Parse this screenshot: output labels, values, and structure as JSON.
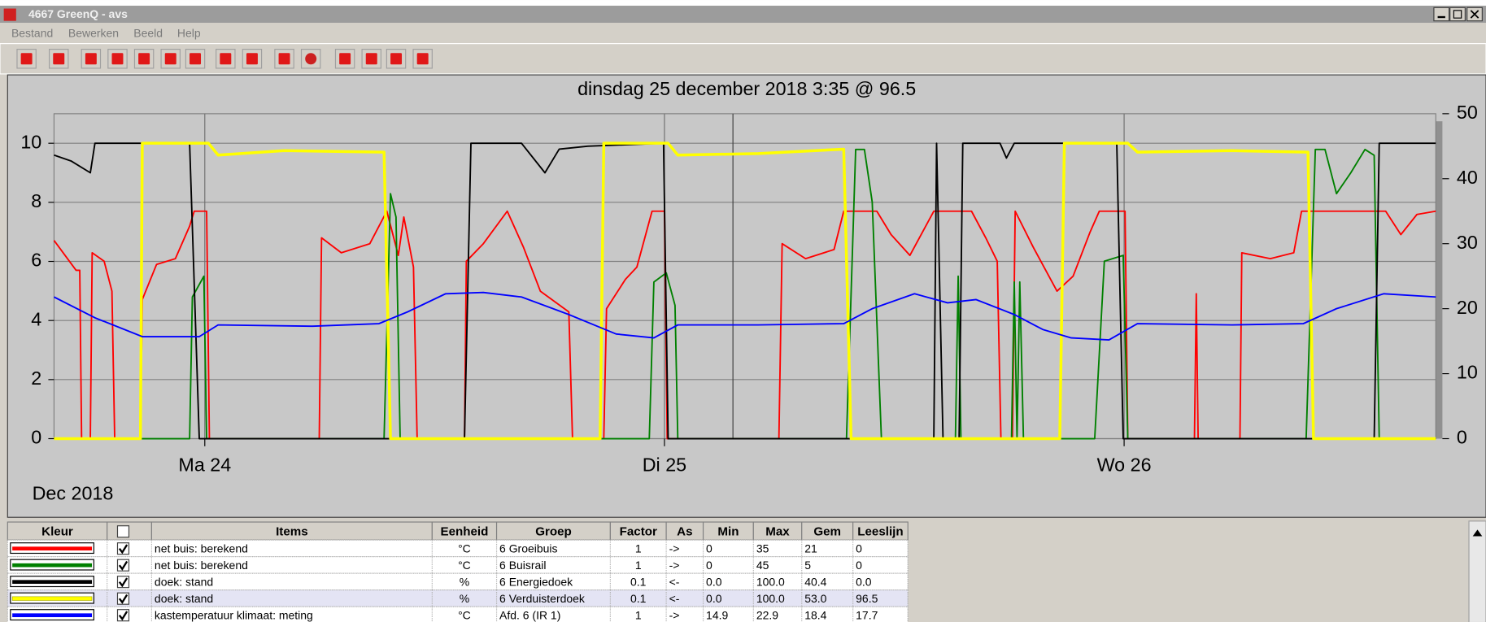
{
  "window": {
    "title": "4667 GreenQ - avs",
    "menu": [
      "Bestand",
      "Bewerken",
      "Beeld",
      "Help"
    ]
  },
  "chart_data": {
    "type": "line",
    "title": "dinsdag 25 december 2018 3:35 @ 96.5",
    "xlim": [
      23.672,
      26.678
    ],
    "xticks": [
      {
        "value": 24,
        "label": "Ma 24"
      },
      {
        "value": 25,
        "label": "Di 25"
      },
      {
        "value": 26,
        "label": "Wo 26"
      }
    ],
    "x_label": "Dec 2018",
    "ylim": [
      0,
      11
    ],
    "yticks": [
      0,
      2,
      4,
      6,
      8,
      10
    ],
    "y2lim": [
      0,
      50
    ],
    "y2ticks": [
      0,
      10,
      20,
      30,
      40,
      50
    ],
    "grid": true,
    "cursor_x": 25.149,
    "series": [
      {
        "name": "net buis: berekend",
        "color": "#ff0000",
        "axis": "y2",
        "x": [
          23.672,
          23.72,
          23.728,
          23.732,
          23.751,
          23.755,
          23.781,
          23.798,
          23.804,
          23.86,
          23.864,
          23.895,
          23.936,
          23.967,
          23.977,
          24.004,
          24.01,
          24.249,
          24.254,
          24.297,
          24.359,
          24.396,
          24.421,
          24.433,
          24.454,
          24.462,
          24.565,
          24.569,
          24.606,
          24.658,
          24.693,
          24.73,
          24.792,
          24.8,
          24.868,
          24.874,
          24.915,
          24.94,
          24.973,
          25.0,
          25.006,
          25.249,
          25.256,
          25.307,
          25.369,
          25.39,
          25.462,
          25.493,
          25.534,
          25.586,
          25.668,
          25.699,
          25.724,
          25.732,
          25.757,
          25.763,
          25.802,
          25.854,
          25.889,
          25.926,
          25.946,
          26.002,
          26.008,
          26.153,
          26.157,
          26.161,
          26.252,
          26.256,
          26.318,
          26.369,
          26.386,
          26.569,
          26.602,
          26.637,
          26.678
        ],
        "values": [
          30.5,
          25.9,
          25.9,
          0,
          0,
          28.6,
          27.3,
          22.7,
          0,
          0,
          21.4,
          26.8,
          27.7,
          32.7,
          35,
          35,
          0,
          0,
          30.9,
          28.6,
          30,
          35,
          28.2,
          34.1,
          26.4,
          0,
          0,
          27.3,
          30,
          35,
          29.5,
          22.7,
          19.5,
          0,
          0,
          20,
          24.5,
          26.4,
          35,
          35,
          0,
          0,
          30,
          27.7,
          29.1,
          35,
          35,
          31.4,
          28.2,
          35,
          35,
          30.9,
          27.3,
          0,
          0,
          35,
          29.5,
          22.7,
          25,
          31.8,
          35,
          35,
          0,
          0,
          22.3,
          0,
          0,
          28.6,
          27.7,
          28.6,
          35,
          35,
          31.4,
          34.5,
          35
        ]
      },
      {
        "name": "net buis: berekend",
        "color": "#008000",
        "axis": "y2",
        "x": [
          23.672,
          23.967,
          23.973,
          23.998,
          24.004,
          24.39,
          24.404,
          24.416,
          24.425,
          24.967,
          24.977,
          25.004,
          25.023,
          25.029,
          25.396,
          25.416,
          25.435,
          25.452,
          25.472,
          25.633,
          25.639,
          25.645,
          25.755,
          25.761,
          25.767,
          25.773,
          25.781,
          25.936,
          25.957,
          25.998,
          26.008,
          26.396,
          26.416,
          26.437,
          26.462,
          26.493,
          26.524,
          26.544,
          26.555,
          26.678
        ],
        "values": [
          0,
          0,
          21.8,
          25,
          0,
          0,
          37.7,
          34.1,
          0,
          0,
          24.1,
          25.5,
          20.5,
          0,
          0,
          44.5,
          44.5,
          36.4,
          0,
          0,
          25,
          0,
          0,
          24.1,
          0,
          24.1,
          0,
          0,
          27.3,
          28.2,
          0,
          0,
          44.5,
          44.5,
          37.7,
          40.9,
          44.5,
          43.6,
          0,
          0
        ]
      },
      {
        "name": "doek: stand",
        "color": "#000000",
        "axis": "y",
        "x": [
          23.672,
          23.709,
          23.751,
          23.761,
          23.967,
          23.988,
          24.565,
          24.579,
          24.689,
          24.74,
          24.771,
          24.833,
          24.998,
          25.008,
          25.586,
          25.592,
          25.606,
          25.641,
          25.649,
          25.73,
          25.744,
          25.761,
          25.984,
          25.998,
          26.544,
          26.555,
          26.678
        ],
        "values": [
          9.6,
          9.4,
          9.0,
          10,
          10,
          0,
          0,
          10,
          10,
          9.0,
          9.8,
          9.9,
          10,
          0,
          0,
          10,
          0,
          0,
          10,
          10,
          9.5,
          10,
          10,
          0,
          0,
          10,
          10
        ]
      },
      {
        "name": "doek: stand",
        "color": "#ffff00",
        "axis": "y",
        "x": [
          23.672,
          23.86,
          23.864,
          24.008,
          24.029,
          24.173,
          24.39,
          24.404,
          24.86,
          24.868,
          25.008,
          25.029,
          25.204,
          25.39,
          25.406,
          25.86,
          25.87,
          26.008,
          26.029,
          26.235,
          26.4,
          26.412,
          26.678
        ],
        "values": [
          0,
          0,
          10,
          10,
          9.6,
          9.75,
          9.7,
          0,
          0,
          10,
          10,
          9.6,
          9.65,
          9.8,
          0,
          0,
          10,
          10,
          9.7,
          9.75,
          9.7,
          0,
          0
        ]
      },
      {
        "name": "kastemperatuur klimaat: meting",
        "color": "#0000ff",
        "axis": "y2",
        "x": [
          23.672,
          23.761,
          23.864,
          23.988,
          24.029,
          24.235,
          24.379,
          24.441,
          24.524,
          24.606,
          24.689,
          24.792,
          24.895,
          24.977,
          25.029,
          25.204,
          25.39,
          25.452,
          25.544,
          25.616,
          25.678,
          25.761,
          25.823,
          25.885,
          25.967,
          26.029,
          26.235,
          26.39,
          26.462,
          26.565,
          26.678
        ],
        "values": [
          21.8,
          18.6,
          15.7,
          15.7,
          17.5,
          17.3,
          17.7,
          19.5,
          22.3,
          22.5,
          21.8,
          19.1,
          16.1,
          15.5,
          17.5,
          17.5,
          17.7,
          20,
          22.3,
          20.9,
          21.4,
          19.1,
          16.8,
          15.5,
          15.2,
          17.7,
          17.5,
          17.7,
          20,
          22.3,
          21.8
        ]
      }
    ]
  },
  "table": {
    "columns": [
      "Kleur",
      "Items",
      "Eenheid",
      "Groep",
      "Factor",
      "As",
      "Min",
      "Max",
      "Gem",
      "Leeslijn"
    ],
    "rows": [
      [
        "°C",
        "6 Groeibuis",
        "1",
        "->",
        "0",
        "35",
        "21",
        "0"
      ],
      [
        "°C",
        "6 Buisrail",
        "1",
        "->",
        "0",
        "45",
        "5",
        "0"
      ],
      [
        "%",
        "6 Energiedoek",
        "0.1",
        "<-",
        "0.0",
        "100.0",
        "40.4",
        "0.0"
      ],
      [
        "%",
        "6 Verduisterdoek",
        "0.1",
        "<-",
        "0.0",
        "100.0",
        "53.0",
        "96.5"
      ],
      [
        "°C",
        "Afd. 6 (IR 1)",
        "1",
        "->",
        "14.9",
        "22.9",
        "18.4",
        "17.7"
      ]
    ]
  }
}
